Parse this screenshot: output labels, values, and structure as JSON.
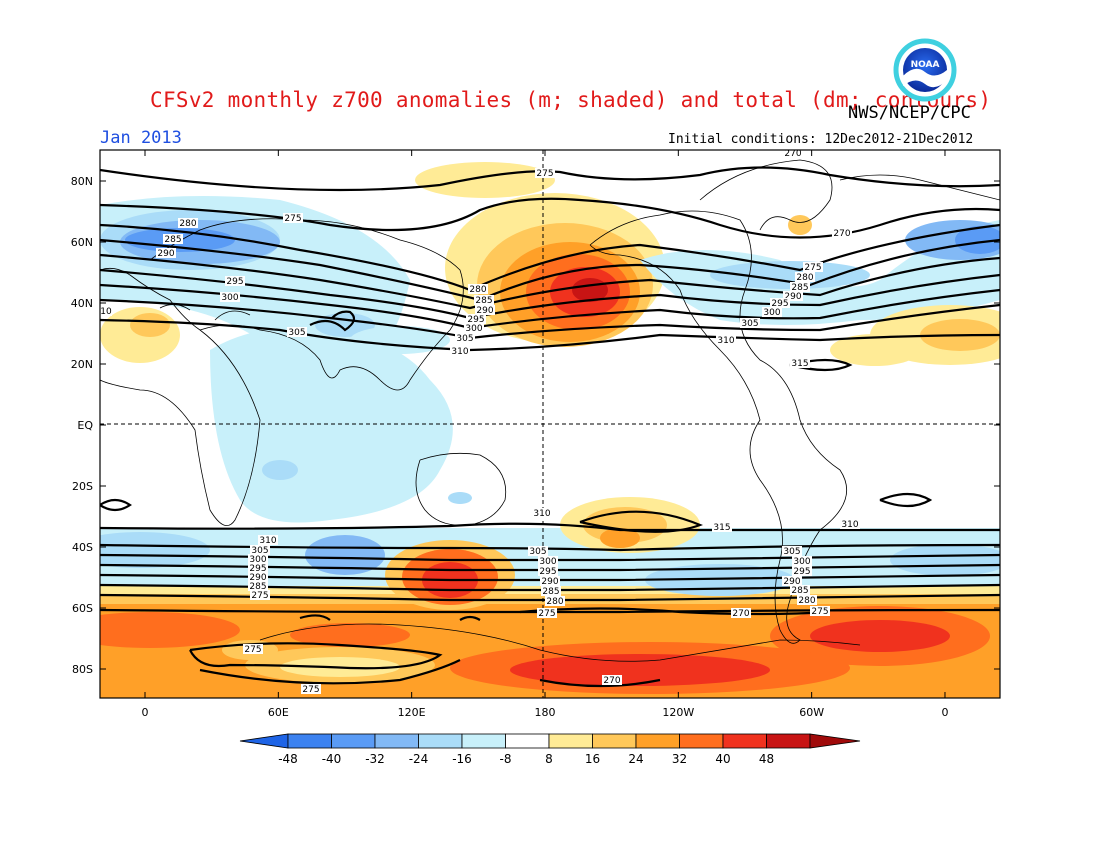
{
  "title": "CFSv2 monthly z700 anomalies (m; shaded) and total (dm; contours)",
  "agency": "NWS/NCEP/CPC",
  "logo_text": "NOAA",
  "period": "Jan 2013",
  "initial_conditions": "Initial conditions: 12Dec2012-21Dec2012",
  "lat_labels": [
    "80N",
    "60N",
    "40N",
    "20N",
    "EQ",
    "20S",
    "40S",
    "60S",
    "80S"
  ],
  "lon_labels": [
    "0",
    "60E",
    "120E",
    "180",
    "120W",
    "60W",
    "0"
  ],
  "colorbar": {
    "labels": [
      "-48",
      "-40",
      "-32",
      "-24",
      "-16",
      "-8",
      "8",
      "16",
      "24",
      "32",
      "40",
      "48"
    ],
    "colors": [
      "#1e64e6",
      "#3c82f0",
      "#5a9bf5",
      "#82b9f5",
      "#aadcf8",
      "#c8f0fa",
      "#ffffff",
      "#ffeb96",
      "#ffc85a",
      "#ffa028",
      "#ff6e1e",
      "#f0321e",
      "#c81414",
      "#a00a0a"
    ]
  },
  "contour_labels": {
    "nh": [
      "270",
      "275",
      "280",
      "285",
      "290",
      "295",
      "300",
      "305",
      "310",
      "315"
    ],
    "sh": [
      "310",
      "305",
      "300",
      "295",
      "290",
      "285",
      "280",
      "275",
      "270",
      "315"
    ],
    "left_edge": "10"
  }
}
